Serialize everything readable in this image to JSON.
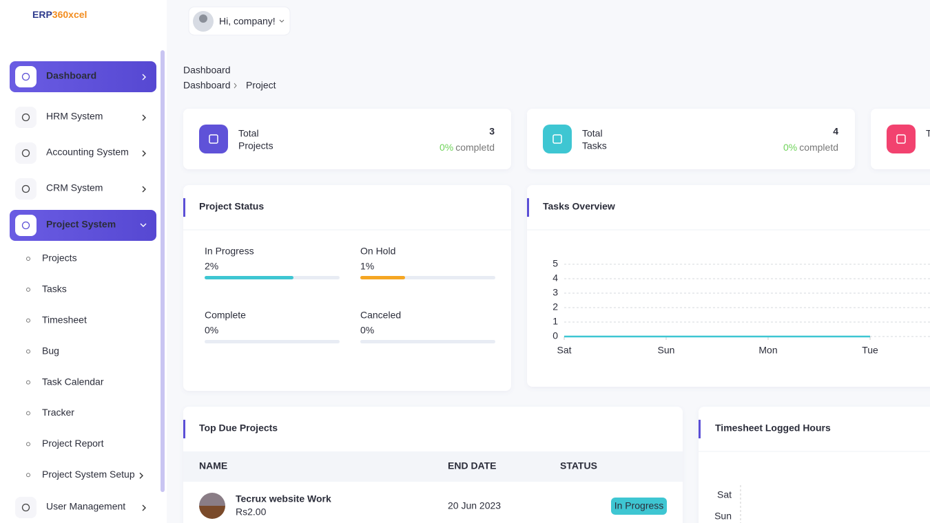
{
  "logo": {
    "part1": "ERP",
    "part2": "360xcel"
  },
  "header": {
    "greeting": "Hi, company!"
  },
  "sidebar": {
    "menu": [
      {
        "label": "Dashboard",
        "active": true
      },
      {
        "label": "HRM System"
      },
      {
        "label": "Accounting System"
      },
      {
        "label": "CRM System"
      },
      {
        "label": "Project System",
        "active": true,
        "expanded": true,
        "submenu": [
          "Projects",
          "Tasks",
          "Timesheet",
          "Bug",
          "Task Calendar",
          "Tracker",
          "Project Report",
          "Project System Setup"
        ]
      },
      {
        "label": "User Management"
      }
    ]
  },
  "page": {
    "title": "Dashboard",
    "breadcrumb": [
      "Dashboard",
      "Project"
    ]
  },
  "stats": [
    {
      "caption": "Total",
      "label": "Projects",
      "value": 3,
      "percent": "0%",
      "note": "completd",
      "color": "#5f52d8"
    },
    {
      "caption": "Total",
      "label": "Tasks",
      "value": 4,
      "percent": "0%",
      "note": "completd",
      "color": "#3ec6d2"
    },
    {
      "caption": "Total",
      "color": "#f2426f"
    }
  ],
  "project_status": {
    "title": "Project Status",
    "items": [
      {
        "label": "In Progress",
        "value": "2%",
        "color": "#3ec6d2"
      },
      {
        "label": "On Hold",
        "value": "1%",
        "color": "#f5a623"
      },
      {
        "label": "Complete",
        "value": "0%",
        "color": "#6fd35a"
      },
      {
        "label": "Canceled",
        "value": "0%",
        "color": "#f2426f"
      }
    ]
  },
  "tasks_overview": {
    "title": "Tasks Overview",
    "chart": {
      "type": "line",
      "categories": [
        "Sat",
        "Sun",
        "Mon",
        "Tue"
      ],
      "values": [
        0,
        0,
        0,
        0
      ],
      "ylim": [
        0,
        5
      ],
      "yticks": [
        0,
        1,
        2,
        3,
        4,
        5
      ],
      "color": "#3ec6d2",
      "grid": true
    }
  },
  "top_due_projects": {
    "title": "Top Due Projects",
    "columns": [
      "NAME",
      "END DATE",
      "STATUS"
    ],
    "rows": [
      {
        "name": "Tecrux website Work",
        "budget": "Rs2.00",
        "end_date": "20 Jun 2023",
        "status": "In Progress"
      }
    ]
  },
  "timesheet": {
    "title": "Timesheet Logged Hours",
    "chart": {
      "type": "bar",
      "categories": [
        "Sat",
        "Sun"
      ]
    }
  }
}
